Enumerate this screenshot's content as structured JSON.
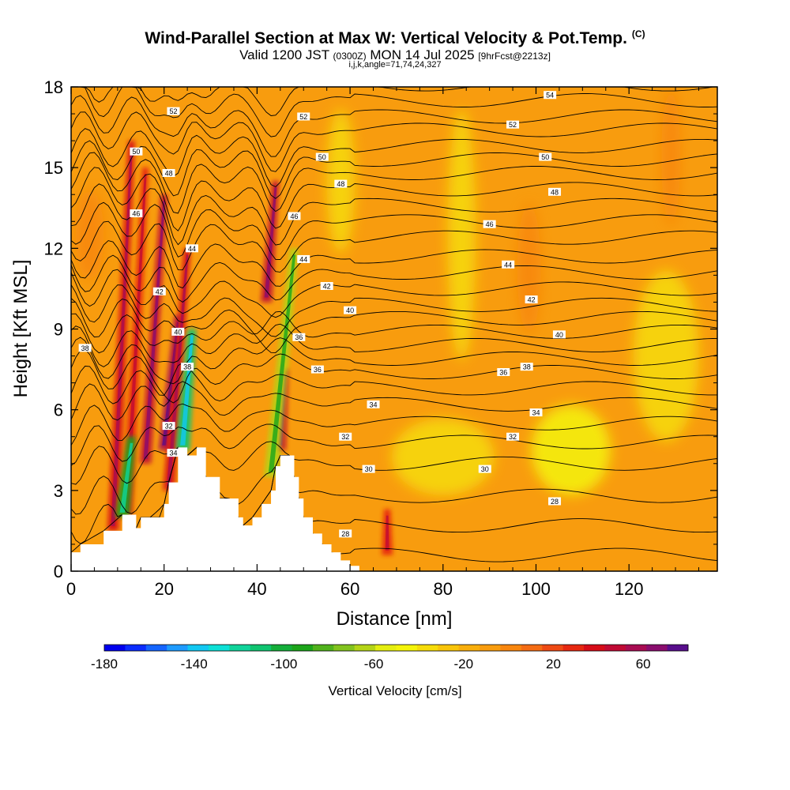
{
  "header": {
    "title": "Wind-Parallel Section at Max W: Vertical Velocity & Pot.Temp.",
    "title_mark": "(C)",
    "subtitle_valid": "Valid 1200 JST",
    "subtitle_utc": "(0300Z)",
    "subtitle_date": "MON 14 Jul 2025",
    "subtitle_fcst": "[9hrFcst@2213z]",
    "subtitle_ijk": "i,j,k,angle=71,74,24,327"
  },
  "colors": {
    "background_field": "#f89c0e",
    "terrain": "#ffffff",
    "contour": "#000000"
  },
  "chart_data": {
    "type": "heatmap",
    "xlabel": "Distance [nm]",
    "ylabel": "Height [Kft MSL]",
    "xlim": [
      0,
      139
    ],
    "ylim": [
      0,
      18
    ],
    "x_ticks": [
      0,
      20,
      40,
      60,
      80,
      100,
      120
    ],
    "y_ticks": [
      0,
      3,
      6,
      9,
      12,
      15,
      18
    ],
    "colorbar": {
      "label": "Vertical Velocity [cm/s]",
      "min": -180,
      "max": 80,
      "step": 10,
      "tick_values": [
        -180,
        -140,
        -100,
        -60,
        -20,
        20,
        60
      ],
      "colors": [
        "#0000ee",
        "#0b2cff",
        "#1565ff",
        "#1e9bff",
        "#12c8f2",
        "#0de0d6",
        "#10d39a",
        "#0fc470",
        "#14ae3a",
        "#1ca51a",
        "#50b21c",
        "#82c31e",
        "#b4d417",
        "#e4ee10",
        "#f4f40a",
        "#f6dc0a",
        "#f8c40a",
        "#f8ae0c",
        "#f89c0e",
        "#f8860e",
        "#f46c14",
        "#ee4a14",
        "#e62810",
        "#d60c18",
        "#c00a34",
        "#a80c52",
        "#8a0d6e",
        "#580e8c"
      ]
    },
    "terrain_profile": {
      "x": [
        0,
        2,
        7,
        11,
        14,
        15,
        19,
        20,
        21,
        23,
        25,
        27,
        29,
        32,
        34,
        36,
        37,
        39,
        41,
        43,
        44,
        45,
        47,
        48,
        49,
        50,
        52,
        54,
        56,
        58,
        60,
        62
      ],
      "y": [
        0.7,
        1.0,
        1.5,
        2.1,
        1.6,
        2.0,
        2.0,
        2.5,
        3.3,
        4.6,
        4.3,
        4.6,
        3.5,
        2.7,
        2.7,
        2.0,
        1.7,
        2.0,
        2.5,
        3.0,
        3.9,
        4.3,
        4.3,
        3.5,
        2.7,
        2.0,
        1.4,
        1.0,
        0.7,
        0.4,
        0.2,
        0.0
      ]
    },
    "velocity_features": [
      {
        "x": 9,
        "y0": 1.5,
        "x1": 13,
        "y1": 16.0,
        "w": 55,
        "shape": "updraft"
      },
      {
        "x": 12,
        "y0": 2.0,
        "x1": 16,
        "y1": 15.0,
        "w": 45,
        "shape": "updraft"
      },
      {
        "x": 16,
        "y0": 4.0,
        "x1": 20,
        "y1": 14.0,
        "w": 60,
        "shape": "updraft"
      },
      {
        "x": 20,
        "y0": 4.5,
        "x1": 23,
        "y1": 9.5,
        "w": 70,
        "shape": "updraft"
      },
      {
        "x": 21,
        "y0": 3.0,
        "x1": 25,
        "y1": 12.0,
        "w": 50,
        "shape": "updraft"
      },
      {
        "x": 24,
        "y0": 4.5,
        "x1": 26,
        "y1": 9.0,
        "w": -110,
        "shape": "downdraft"
      },
      {
        "x": 11,
        "y0": 2.0,
        "x1": 13,
        "y1": 5.0,
        "w": -90,
        "shape": "downdraft"
      },
      {
        "x": 42,
        "y0": 10.0,
        "x1": 44,
        "y1": 14.5,
        "w": 60,
        "shape": "updraft"
      },
      {
        "x": 45,
        "y0": 4.5,
        "x1": 46,
        "y1": 7.5,
        "w": 60,
        "shape": "updraft"
      },
      {
        "x": 43,
        "y0": 3.5,
        "x1": 48,
        "y1": 12.0,
        "w": -60,
        "shape": "downdraft"
      },
      {
        "x": 68,
        "y0": 0.6,
        "x1": 68,
        "y1": 2.3,
        "w": 40,
        "shape": "updraft"
      },
      {
        "x": 97,
        "y0": 9.0,
        "x1": 100,
        "y1": 13.5,
        "w": 10,
        "shape": "blob"
      },
      {
        "x": 128,
        "y0": 13.0,
        "x1": 130,
        "y1": 17.8,
        "w": 10,
        "shape": "blob"
      },
      {
        "x": 2,
        "y0": 11.0,
        "x1": 6,
        "y1": 14.0,
        "w": 10,
        "shape": "blob"
      },
      {
        "x": 100,
        "y0": 3.0,
        "x1": 115,
        "y1": 6.0,
        "w": -40,
        "shape": "blob"
      },
      {
        "x": 70,
        "y0": 3.0,
        "x1": 90,
        "y1": 5.5,
        "w": -30,
        "shape": "blob"
      },
      {
        "x": 82,
        "y0": 8.0,
        "x1": 86,
        "y1": 17.0,
        "w": -30,
        "shape": "blob"
      },
      {
        "x": 56,
        "y0": 12.0,
        "x1": 60,
        "y1": 17.0,
        "w": -30,
        "shape": "blob"
      },
      {
        "x": 122,
        "y0": 5.0,
        "x1": 134,
        "y1": 11.0,
        "w": -30,
        "shape": "blob"
      }
    ],
    "theta_contours": {
      "levels": [
        28,
        29,
        30,
        31,
        32,
        33,
        34,
        35,
        36,
        37,
        38,
        39,
        40,
        41,
        42,
        43,
        44,
        45,
        46,
        47,
        48,
        49,
        50,
        51,
        52,
        53,
        54,
        55
      ],
      "far_field_height": [
        0.6,
        1.7,
        2.8,
        4.0,
        4.8,
        5.5,
        6.2,
        6.8,
        7.4,
        7.9,
        8.4,
        8.9,
        9.4,
        9.9,
        10.5,
        11.1,
        11.7,
        12.4,
        13.0,
        13.6,
        14.2,
        14.8,
        15.3,
        15.8,
        16.4,
        16.9,
        17.5,
        18.1
      ],
      "labels": [
        {
          "text": "54",
          "x": 103,
          "y": 17.7
        },
        {
          "text": "52",
          "x": 22,
          "y": 17.1
        },
        {
          "text": "52",
          "x": 50,
          "y": 16.9
        },
        {
          "text": "52",
          "x": 95,
          "y": 16.6
        },
        {
          "text": "50",
          "x": 14,
          "y": 15.6
        },
        {
          "text": "50",
          "x": 54,
          "y": 15.4
        },
        {
          "text": "50",
          "x": 102,
          "y": 15.4
        },
        {
          "text": "48",
          "x": 21,
          "y": 14.8
        },
        {
          "text": "48",
          "x": 58,
          "y": 14.4
        },
        {
          "text": "48",
          "x": 104,
          "y": 14.1
        },
        {
          "text": "46",
          "x": 14,
          "y": 13.3
        },
        {
          "text": "46",
          "x": 48,
          "y": 13.2
        },
        {
          "text": "46",
          "x": 90,
          "y": 12.9
        },
        {
          "text": "44",
          "x": 26,
          "y": 12.0
        },
        {
          "text": "44",
          "x": 50,
          "y": 11.6
        },
        {
          "text": "44",
          "x": 94,
          "y": 11.4
        },
        {
          "text": "42",
          "x": 19,
          "y": 10.4
        },
        {
          "text": "42",
          "x": 55,
          "y": 10.6
        },
        {
          "text": "42",
          "x": 99,
          "y": 10.1
        },
        {
          "text": "40",
          "x": 23,
          "y": 8.9
        },
        {
          "text": "40",
          "x": 60,
          "y": 9.7
        },
        {
          "text": "40",
          "x": 105,
          "y": 8.8
        },
        {
          "text": "38",
          "x": 3,
          "y": 8.3
        },
        {
          "text": "38",
          "x": 25,
          "y": 7.6
        },
        {
          "text": "38",
          "x": 98,
          "y": 7.6
        },
        {
          "text": "36",
          "x": 49,
          "y": 8.7
        },
        {
          "text": "36",
          "x": 53,
          "y": 7.5
        },
        {
          "text": "36",
          "x": 93,
          "y": 7.4
        },
        {
          "text": "34",
          "x": 65,
          "y": 6.2
        },
        {
          "text": "34",
          "x": 100,
          "y": 5.9
        },
        {
          "text": "34",
          "x": 22,
          "y": 4.4
        },
        {
          "text": "32",
          "x": 21,
          "y": 5.4
        },
        {
          "text": "32",
          "x": 59,
          "y": 5.0
        },
        {
          "text": "32",
          "x": 95,
          "y": 5.0
        },
        {
          "text": "30",
          "x": 64,
          "y": 3.8
        },
        {
          "text": "30",
          "x": 89,
          "y": 3.8
        },
        {
          "text": "28",
          "x": 104,
          "y": 2.6
        },
        {
          "text": "28",
          "x": 59,
          "y": 1.4
        }
      ]
    }
  }
}
